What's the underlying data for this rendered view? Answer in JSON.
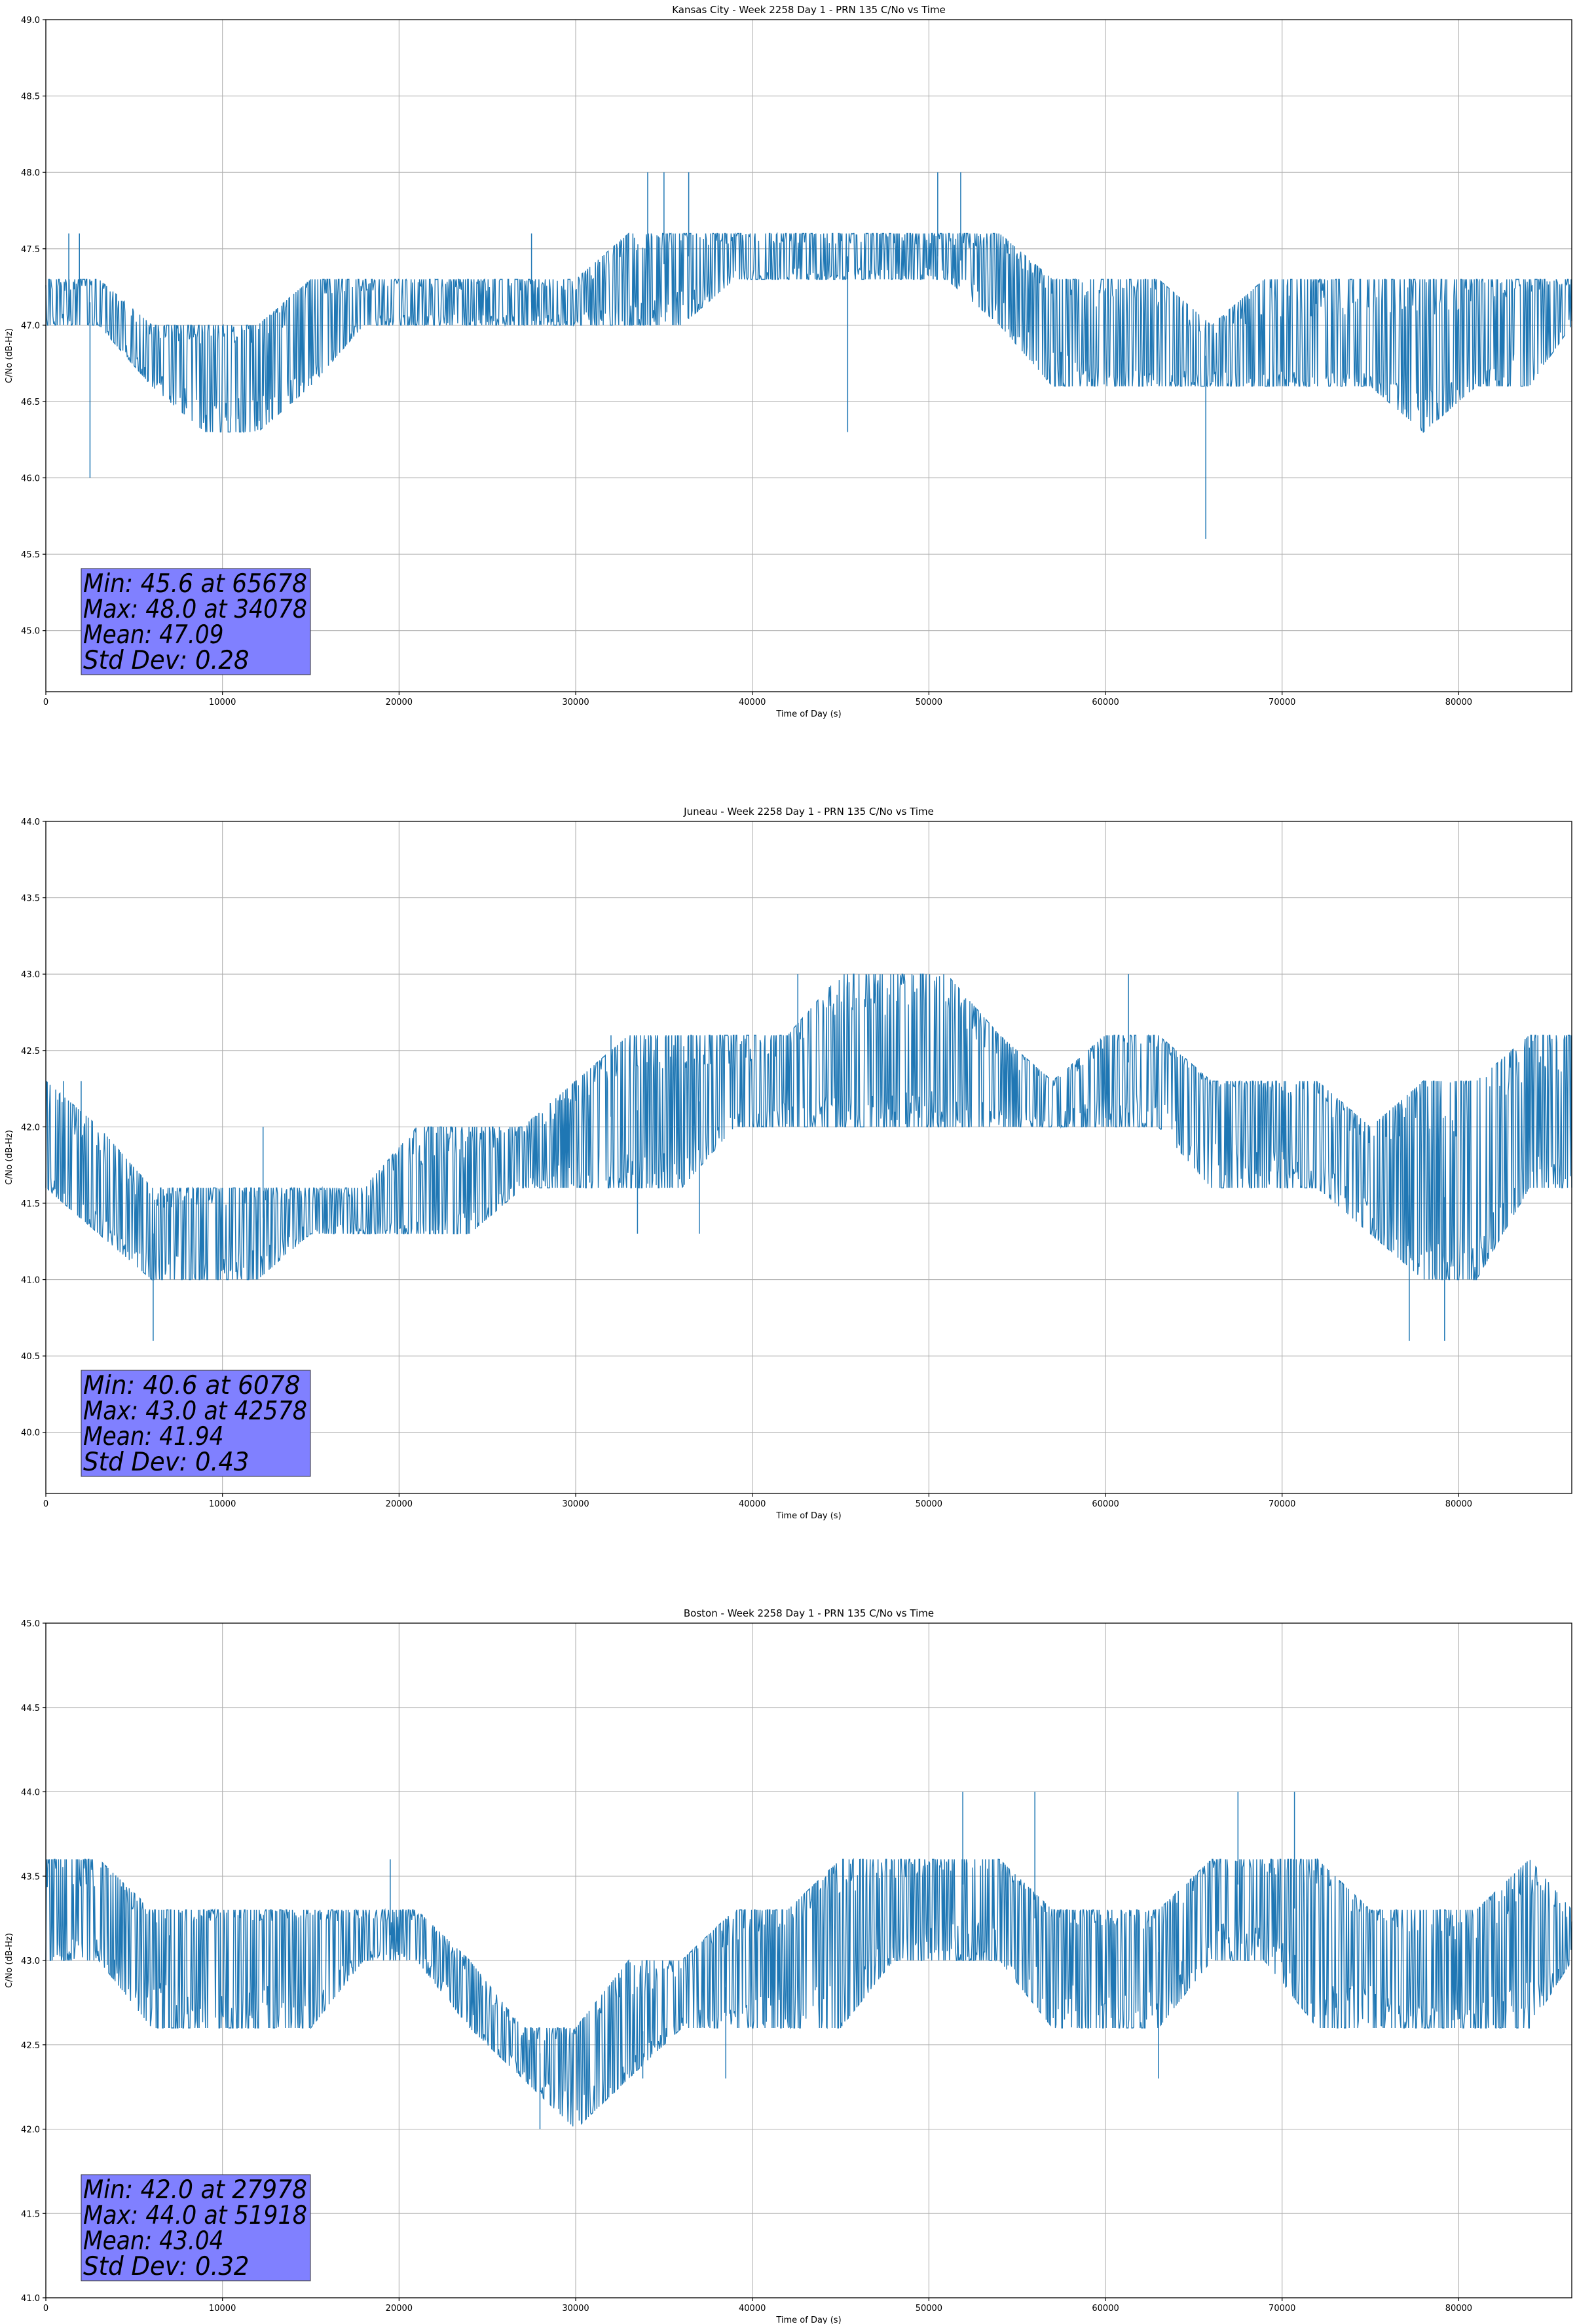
{
  "chart_data": [
    {
      "type": "line",
      "title": "Kansas City - Week 2258 Day 1 - PRN 135 C/No vs Time",
      "xlabel": "Time of Day (s)",
      "ylabel": "C/No (dB-Hz)",
      "xlim": [
        0,
        86400
      ],
      "ylim": [
        44.6,
        49.0
      ],
      "xticks": [
        "0",
        "10000",
        "20000",
        "30000",
        "40000",
        "50000",
        "60000",
        "70000",
        "80000"
      ],
      "yticks": [
        "45.0",
        "45.5",
        "46.0",
        "46.5",
        "47.0",
        "47.5",
        "48.0",
        "48.5",
        "49.0"
      ],
      "grid": true,
      "line_color": "#1f77b4",
      "stats_box_color": "#8080ff",
      "stats": [
        "Min: 45.6 at 65678",
        "Max: 48.0 at 34078",
        "Mean: 47.09",
        "Std Dev: 0.28"
      ],
      "series": [
        {
          "x": [
            0,
            3000,
            6000,
            9000,
            12000,
            15000,
            18000,
            21000,
            24000,
            27000,
            30000,
            33000,
            36000,
            39000,
            42000,
            45000,
            48000,
            51000,
            54000,
            57000,
            60000,
            63000,
            66000,
            69000,
            72000,
            75000,
            78000,
            81000,
            84000,
            86400
          ],
          "y": [
            47.15,
            47.15,
            46.8,
            46.75,
            46.75,
            46.85,
            47.15,
            47.15,
            47.15,
            47.15,
            47.15,
            47.3,
            47.45,
            47.45,
            47.45,
            47.45,
            47.45,
            47.45,
            47.35,
            47.1,
            46.85,
            46.8,
            46.8,
            46.8,
            46.8,
            46.8,
            46.8,
            46.85,
            47.1,
            47.15
          ],
          "lo": [
            47.0,
            47.0,
            46.6,
            46.3,
            46.3,
            46.6,
            47.0,
            47.0,
            47.0,
            47.0,
            47.0,
            47.0,
            47.0,
            47.3,
            47.3,
            47.3,
            47.3,
            47.3,
            47.0,
            46.6,
            46.6,
            46.6,
            46.6,
            46.6,
            46.6,
            46.6,
            46.3,
            46.6,
            46.6,
            47.0
          ],
          "hi": [
            47.3,
            47.3,
            47.0,
            47.0,
            47.0,
            47.3,
            47.3,
            47.3,
            47.3,
            47.3,
            47.3,
            47.6,
            47.6,
            47.6,
            47.6,
            47.6,
            47.6,
            47.6,
            47.6,
            47.3,
            47.3,
            47.3,
            47.0,
            47.3,
            47.3,
            47.3,
            47.3,
            47.3,
            47.3,
            47.3
          ],
          "spikes": [
            [
              2500,
              46.0
            ],
            [
              65678,
              45.6
            ],
            [
              34078,
              48.0
            ],
            [
              35000,
              48.0
            ],
            [
              36400,
              48.0
            ],
            [
              50500,
              48.0
            ],
            [
              51800,
              48.0
            ],
            [
              45400,
              46.3
            ],
            [
              1300,
              47.6
            ],
            [
              1900,
              47.6
            ],
            [
              27500,
              47.6
            ]
          ]
        }
      ]
    },
    {
      "type": "line",
      "title": "Juneau - Week 2258 Day 1 - PRN 135 C/No vs Time",
      "xlabel": "Time of Day (s)",
      "ylabel": "C/No (dB-Hz)",
      "xlim": [
        0,
        86400
      ],
      "ylim": [
        39.6,
        44.0
      ],
      "xticks": [
        "0",
        "10000",
        "20000",
        "30000",
        "40000",
        "50000",
        "60000",
        "70000",
        "80000"
      ],
      "yticks": [
        "40.0",
        "40.5",
        "41.0",
        "41.5",
        "42.0",
        "42.5",
        "43.0",
        "43.5",
        "44.0"
      ],
      "grid": true,
      "line_color": "#1f77b4",
      "stats_box_color": "#8080ff",
      "stats": [
        "Min: 40.6 at 6078",
        "Max: 43.0 at 42578",
        "Mean: 41.94",
        "Std Dev: 0.43"
      ],
      "series": [
        {
          "x": [
            0,
            3000,
            6000,
            9000,
            12000,
            15000,
            18000,
            21000,
            24000,
            27000,
            30000,
            33000,
            36000,
            39000,
            42000,
            45000,
            48000,
            51000,
            54000,
            57000,
            60000,
            63000,
            66000,
            69000,
            72000,
            75000,
            78000,
            81000,
            84000,
            86400
          ],
          "y": [
            41.8,
            41.6,
            41.3,
            41.35,
            41.4,
            41.45,
            41.45,
            41.5,
            41.6,
            41.8,
            42.0,
            42.1,
            42.15,
            42.2,
            42.35,
            42.45,
            42.45,
            42.5,
            42.25,
            42.15,
            42.4,
            42.45,
            42.2,
            42.15,
            42.0,
            41.7,
            41.5,
            41.6,
            42.0,
            42.15
          ],
          "lo": [
            41.6,
            41.3,
            41.0,
            41.0,
            41.0,
            41.3,
            41.3,
            41.3,
            41.3,
            41.6,
            41.6,
            41.6,
            41.6,
            42.0,
            42.0,
            42.0,
            42.0,
            42.0,
            42.0,
            42.0,
            42.0,
            42.0,
            41.6,
            41.6,
            41.6,
            41.3,
            41.0,
            41.0,
            41.6,
            41.6
          ],
          "hi": [
            42.3,
            42.0,
            41.6,
            41.6,
            41.6,
            41.6,
            41.6,
            42.0,
            42.0,
            42.0,
            42.3,
            42.6,
            42.6,
            42.6,
            42.6,
            43.0,
            43.0,
            43.0,
            42.6,
            42.3,
            42.6,
            42.6,
            42.3,
            42.3,
            42.3,
            42.0,
            42.3,
            42.3,
            42.6,
            42.6
          ],
          "spikes": [
            [
              6078,
              40.6
            ],
            [
              42578,
              43.0
            ],
            [
              61300,
              43.0
            ],
            [
              1000,
              42.3
            ],
            [
              2000,
              42.3
            ],
            [
              12300,
              42.0
            ],
            [
              32000,
              42.6
            ],
            [
              37000,
              41.3
            ],
            [
              33500,
              41.3
            ],
            [
              77200,
              40.6
            ],
            [
              79200,
              40.6
            ]
          ]
        }
      ]
    },
    {
      "type": "line",
      "title": "Boston - Week 2258 Day 1 - PRN 135 C/No vs Time",
      "xlabel": "Time of Day (s)",
      "ylabel": "C/No (dB-Hz)",
      "xlim": [
        0,
        86400
      ],
      "ylim": [
        41.0,
        45.0
      ],
      "xticks": [
        "0",
        "10000",
        "20000",
        "30000",
        "40000",
        "50000",
        "60000",
        "70000",
        "80000"
      ],
      "yticks": [
        "41.0",
        "41.5",
        "42.0",
        "42.5",
        "43.0",
        "43.5",
        "44.0",
        "44.5",
        "45.0"
      ],
      "grid": true,
      "line_color": "#1f77b4",
      "stats_box_color": "#8080ff",
      "stats": [
        "Min: 42.0 at 27978",
        "Max: 44.0 at 51918",
        "Mean: 43.04",
        "Std Dev: 0.32"
      ],
      "series": [
        {
          "x": [
            0,
            3000,
            6000,
            9000,
            12000,
            15000,
            18000,
            21000,
            24000,
            27000,
            30000,
            33000,
            36000,
            39000,
            42000,
            45000,
            48000,
            51000,
            54000,
            57000,
            60000,
            63000,
            66000,
            69000,
            72000,
            75000,
            78000,
            81000,
            84000,
            86400
          ],
          "y": [
            43.25,
            43.25,
            43.15,
            43.15,
            43.15,
            43.15,
            43.15,
            43.15,
            42.8,
            42.45,
            42.45,
            42.5,
            42.8,
            42.85,
            43.1,
            43.15,
            43.3,
            43.45,
            43.45,
            43.15,
            43.1,
            43.05,
            43.45,
            43.45,
            43.2,
            43.15,
            43.0,
            42.9,
            43.15,
            43.15
          ],
          "lo": [
            43.0,
            43.0,
            42.6,
            42.6,
            42.6,
            42.6,
            43.0,
            43.0,
            42.6,
            42.3,
            42.0,
            42.3,
            42.6,
            42.6,
            42.6,
            42.6,
            43.0,
            43.0,
            43.0,
            42.6,
            42.6,
            42.6,
            43.0,
            43.0,
            42.6,
            42.6,
            42.6,
            42.6,
            42.6,
            43.0
          ],
          "hi": [
            43.6,
            43.6,
            43.3,
            43.3,
            43.3,
            43.3,
            43.3,
            43.3,
            43.0,
            42.6,
            42.6,
            43.0,
            43.0,
            43.3,
            43.3,
            43.6,
            43.6,
            43.6,
            43.6,
            43.3,
            43.3,
            43.3,
            43.6,
            43.6,
            43.6,
            43.3,
            43.3,
            43.3,
            43.6,
            43.3
          ],
          "spikes": [
            [
              27978,
              42.0
            ],
            [
              51918,
              44.0
            ],
            [
              56000,
              44.0
            ],
            [
              67500,
              44.0
            ],
            [
              70700,
              44.0
            ],
            [
              19500,
              43.6
            ],
            [
              63000,
              42.3
            ],
            [
              38500,
              42.3
            ],
            [
              7000,
              42.6
            ],
            [
              33800,
              42.3
            ]
          ]
        }
      ]
    }
  ]
}
